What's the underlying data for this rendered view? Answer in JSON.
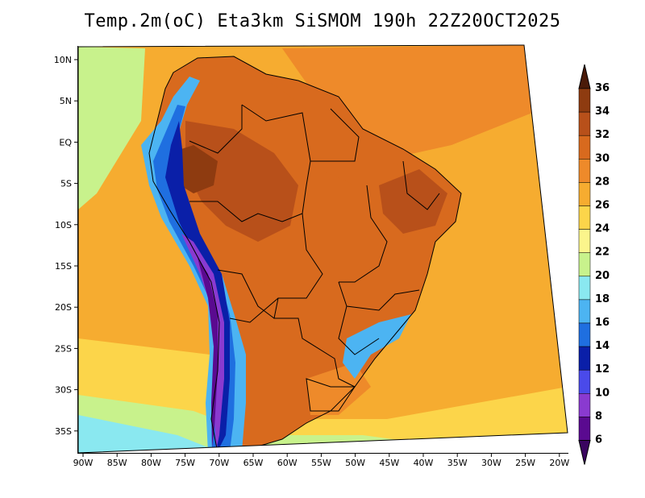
{
  "title": "Temp.2m(oC) Eta3km SiSMOM 190h 22Z20OCT2025",
  "lat_ticks": [
    "10N",
    "5N",
    "EQ",
    "5S",
    "10S",
    "15S",
    "20S",
    "25S",
    "30S",
    "35S"
  ],
  "lon_ticks": [
    "90W",
    "85W",
    "80W",
    "75W",
    "70W",
    "65W",
    "60W",
    "55W",
    "50W",
    "45W",
    "40W",
    "35W",
    "30W",
    "25W",
    "20W"
  ],
  "colorbar": {
    "labels": [
      "36",
      "34",
      "32",
      "30",
      "28",
      "26",
      "24",
      "22",
      "20",
      "18",
      "16",
      "14",
      "12",
      "10",
      "8",
      "6"
    ],
    "colors": [
      "#6b2a0c",
      "#8e3b10",
      "#b8501a",
      "#d86a1e",
      "#ee8a2a",
      "#f6ac30",
      "#fcd54a",
      "#fbf58c",
      "#c8f28c",
      "#8ae8f0",
      "#4cb4f2",
      "#1f6fe0",
      "#0a1fa8",
      "#4a4aea",
      "#8a3ad0",
      "#5a0a90"
    ],
    "top_color": "#4a1a08",
    "bottom_color": "#3a0560"
  },
  "region_colors": {
    "ocean": "#f6ac30",
    "ocean_warm": "#ee8a2a",
    "ocean_cool": "#fcd54a",
    "ocean_cold": "#c8f28c",
    "south_cold": "#8ae8f0",
    "land_hot": "#d86a1e",
    "land_hotter": "#b8501a",
    "land_hottest": "#8e3b10",
    "andes_1": "#4cb4f2",
    "andes_2": "#1f6fe0",
    "andes_3": "#0a1fa8",
    "andes_4": "#8a3ad0",
    "andes_5": "#5a0a90"
  }
}
